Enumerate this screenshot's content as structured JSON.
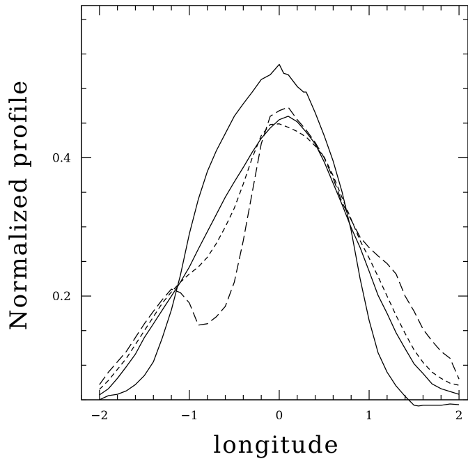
{
  "chart_data": {
    "type": "line",
    "title": "",
    "xlabel": "longitude",
    "ylabel": "Normalized profile",
    "xlim": [
      -2.2,
      2.1
    ],
    "ylim": [
      0.05,
      0.62
    ],
    "x_ticks": [
      -2,
      -1,
      0,
      1,
      2
    ],
    "x_tick_labels": [
      "−2",
      "−1",
      "0",
      "1",
      "2"
    ],
    "y_ticks": [
      0.2,
      0.4
    ],
    "y_tick_labels": [
      "0.2",
      "0.4"
    ],
    "x_minor_step": 0.2,
    "y_minor_step": 0.05,
    "grid": false,
    "legend": "none",
    "series": [
      {
        "style": "solid",
        "x": [
          -2.0,
          -1.9,
          -1.8,
          -1.7,
          -1.6,
          -1.5,
          -1.4,
          -1.3,
          -1.2,
          -1.1,
          -1.0,
          -0.9,
          -0.8,
          -0.7,
          -0.6,
          -0.5,
          -0.4,
          -0.3,
          -0.2,
          -0.1,
          0.0,
          0.05,
          0.1,
          0.2,
          0.27,
          0.3,
          0.4,
          0.5,
          0.6,
          0.7,
          0.8,
          0.9,
          1.0,
          1.1,
          1.2,
          1.3,
          1.4,
          1.5,
          1.55,
          1.6,
          1.7,
          1.8,
          1.9,
          2.0
        ],
        "y": [
          0.05,
          0.056,
          0.058,
          0.063,
          0.072,
          0.085,
          0.105,
          0.14,
          0.18,
          0.23,
          0.29,
          0.34,
          0.38,
          0.41,
          0.435,
          0.46,
          0.478,
          0.495,
          0.513,
          0.52,
          0.535,
          0.522,
          0.52,
          0.503,
          0.495,
          0.495,
          0.465,
          0.432,
          0.395,
          0.35,
          0.295,
          0.225,
          0.165,
          0.118,
          0.09,
          0.07,
          0.055,
          0.042,
          0.041,
          0.042,
          0.042,
          0.042,
          0.044,
          0.043
        ]
      },
      {
        "style": "solid",
        "x": [
          -2.0,
          -1.9,
          -1.8,
          -1.7,
          -1.6,
          -1.5,
          -1.4,
          -1.3,
          -1.2,
          -1.1,
          -1.0,
          -0.9,
          -0.8,
          -0.7,
          -0.6,
          -0.5,
          -0.4,
          -0.3,
          -0.2,
          -0.1,
          0.0,
          0.1,
          0.2,
          0.3,
          0.4,
          0.5,
          0.6,
          0.7,
          0.8,
          0.9,
          1.0,
          1.1,
          1.2,
          1.3,
          1.4,
          1.5,
          1.6,
          1.7,
          1.8,
          1.9,
          2.0
        ],
        "y": [
          0.057,
          0.066,
          0.081,
          0.098,
          0.116,
          0.14,
          0.16,
          0.18,
          0.2,
          0.22,
          0.242,
          0.268,
          0.293,
          0.318,
          0.343,
          0.365,
          0.386,
          0.408,
          0.428,
          0.443,
          0.455,
          0.46,
          0.452,
          0.437,
          0.42,
          0.394,
          0.363,
          0.332,
          0.299,
          0.27,
          0.236,
          0.201,
          0.175,
          0.147,
          0.124,
          0.102,
          0.088,
          0.073,
          0.066,
          0.062,
          0.058
        ]
      },
      {
        "style": "dashed",
        "x": [
          -2.0,
          -1.9,
          -1.8,
          -1.7,
          -1.6,
          -1.5,
          -1.4,
          -1.3,
          -1.2,
          -1.1,
          -1.0,
          -0.9,
          -0.8,
          -0.7,
          -0.6,
          -0.5,
          -0.4,
          -0.3,
          -0.2,
          -0.1,
          0.0,
          0.1,
          0.2,
          0.3,
          0.4,
          0.5,
          0.6,
          0.7,
          0.8,
          0.9,
          1.0,
          1.1,
          1.2,
          1.3,
          1.4,
          1.5,
          1.6,
          1.7,
          1.8,
          1.9,
          2.0
        ],
        "y": [
          0.065,
          0.078,
          0.094,
          0.11,
          0.13,
          0.15,
          0.17,
          0.19,
          0.206,
          0.22,
          0.232,
          0.242,
          0.256,
          0.276,
          0.3,
          0.327,
          0.362,
          0.4,
          0.432,
          0.448,
          0.449,
          0.444,
          0.438,
          0.43,
          0.417,
          0.401,
          0.374,
          0.342,
          0.311,
          0.28,
          0.255,
          0.228,
          0.2,
          0.172,
          0.146,
          0.122,
          0.104,
          0.09,
          0.081,
          0.074,
          0.071
        ]
      },
      {
        "style": "long-dash",
        "x": [
          -2.0,
          -1.9,
          -1.8,
          -1.7,
          -1.6,
          -1.5,
          -1.4,
          -1.3,
          -1.2,
          -1.1,
          -1.0,
          -0.9,
          -0.8,
          -0.7,
          -0.6,
          -0.5,
          -0.4,
          -0.3,
          -0.2,
          -0.1,
          0.0,
          0.1,
          0.2,
          0.3,
          0.4,
          0.5,
          0.6,
          0.7,
          0.8,
          0.9,
          1.0,
          1.1,
          1.2,
          1.3,
          1.4,
          1.5,
          1.6,
          1.7,
          1.8,
          1.9,
          2.0
        ],
        "y": [
          0.072,
          0.09,
          0.105,
          0.12,
          0.14,
          0.16,
          0.178,
          0.195,
          0.21,
          0.205,
          0.19,
          0.158,
          0.16,
          0.17,
          0.185,
          0.22,
          0.28,
          0.35,
          0.42,
          0.46,
          0.468,
          0.473,
          0.455,
          0.44,
          0.422,
          0.4,
          0.37,
          0.335,
          0.31,
          0.285,
          0.27,
          0.258,
          0.247,
          0.232,
          0.2,
          0.178,
          0.152,
          0.135,
          0.12,
          0.11,
          0.08
        ]
      }
    ]
  }
}
